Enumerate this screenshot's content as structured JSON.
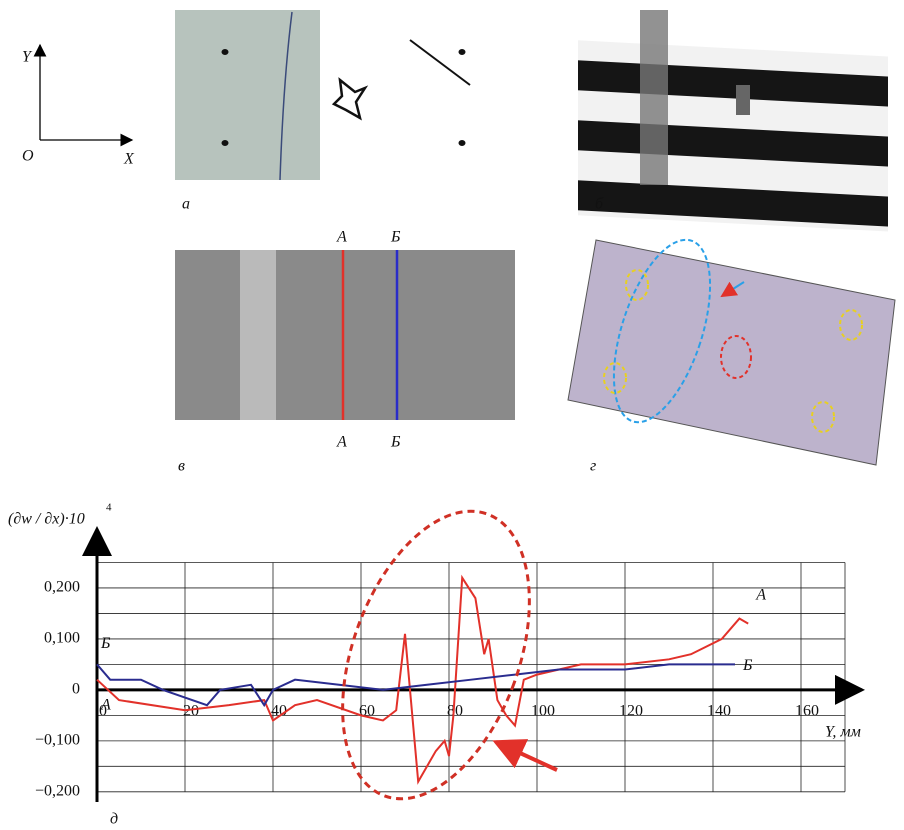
{
  "figure": {
    "axes_y": "Y",
    "axes_origin": "O",
    "axes_x": "X",
    "panel_a": "а",
    "panel_b": "б",
    "panel_v": "в",
    "panel_g": "г",
    "line_a_top": "А",
    "line_b_top": "Б",
    "line_a_bottom": "А",
    "line_b_bottom": "Б"
  },
  "chart_data": {
    "type": "line",
    "panel_label": "д",
    "ylabel": "(∂w / ∂x)·10",
    "ylabel_exponent": "4",
    "xlabel": "Y, мм",
    "xlim": [
      0,
      170
    ],
    "ylim": [
      -0.22,
      0.3
    ],
    "xticks": [
      0,
      20,
      40,
      60,
      80,
      100,
      120,
      140,
      160
    ],
    "yticks": [
      {
        "value": -0.2,
        "label": "−0,200"
      },
      {
        "value": -0.1,
        "label": "−0,100"
      },
      0,
      {
        "value": 0.1,
        "label": "0,100"
      },
      {
        "value": 0.2,
        "label": "0,200"
      }
    ],
    "xgrid": [
      20,
      40,
      60,
      80,
      100,
      120,
      140,
      160,
      170
    ],
    "ygrid": [
      -0.2,
      -0.15,
      -0.1,
      -0.05,
      0,
      0.05,
      0.1,
      0.15,
      0.2,
      0.25
    ],
    "grid": true,
    "series": [
      {
        "name": "А",
        "start_label": "А",
        "color": "#e2312a",
        "x": [
          0,
          5,
          20,
          30,
          38,
          40,
          45,
          50,
          60,
          65,
          68,
          70,
          73,
          75,
          77,
          79,
          80,
          81,
          83,
          86,
          88,
          89,
          91,
          93,
          95,
          97,
          100,
          110,
          120,
          130,
          135,
          142,
          146,
          148
        ],
        "values": [
          0.02,
          -0.02,
          -0.04,
          -0.03,
          -0.02,
          -0.06,
          -0.03,
          -0.02,
          -0.05,
          -0.06,
          -0.04,
          0.11,
          -0.18,
          -0.15,
          -0.12,
          -0.1,
          -0.13,
          -0.05,
          0.22,
          0.18,
          0.07,
          0.1,
          -0.02,
          -0.05,
          -0.07,
          0.02,
          0.03,
          0.05,
          0.05,
          0.06,
          0.07,
          0.1,
          0.14,
          0.13
        ]
      },
      {
        "name": "Б",
        "start_label": "Б",
        "color": "#2a2c8f",
        "x": [
          0,
          3,
          10,
          15,
          25,
          28,
          35,
          38,
          40,
          45,
          55,
          65,
          75,
          85,
          95,
          105,
          120,
          130,
          140,
          145
        ],
        "values": [
          0.05,
          0.02,
          0.02,
          0.0,
          -0.03,
          0.0,
          0.01,
          -0.03,
          0.0,
          0.02,
          0.01,
          0.0,
          0.01,
          0.02,
          0.03,
          0.04,
          0.04,
          0.05,
          0.05,
          0.05
        ]
      }
    ]
  }
}
